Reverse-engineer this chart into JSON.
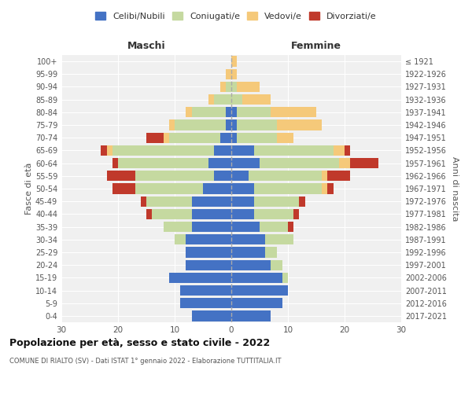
{
  "age_groups": [
    "0-4",
    "5-9",
    "10-14",
    "15-19",
    "20-24",
    "25-29",
    "30-34",
    "35-39",
    "40-44",
    "45-49",
    "50-54",
    "55-59",
    "60-64",
    "65-69",
    "70-74",
    "75-79",
    "80-84",
    "85-89",
    "90-94",
    "95-99",
    "100+"
  ],
  "birth_years": [
    "2017-2021",
    "2012-2016",
    "2007-2011",
    "2002-2006",
    "1997-2001",
    "1992-1996",
    "1987-1991",
    "1982-1986",
    "1977-1981",
    "1972-1976",
    "1967-1971",
    "1962-1966",
    "1957-1961",
    "1952-1956",
    "1947-1951",
    "1942-1946",
    "1937-1941",
    "1932-1936",
    "1927-1931",
    "1922-1926",
    "≤ 1921"
  ],
  "colors": {
    "celibi": "#4472c4",
    "coniugati": "#c5d9a0",
    "vedovi": "#f5c97a",
    "divorziati": "#c0392b"
  },
  "legend_labels": [
    "Celibi/Nubili",
    "Coniugati/e",
    "Vedovi/e",
    "Divorziati/e"
  ],
  "maschi_celibi": [
    7,
    9,
    9,
    11,
    8,
    8,
    8,
    7,
    7,
    7,
    5,
    3,
    4,
    3,
    2,
    1,
    1,
    0,
    0,
    0,
    0
  ],
  "maschi_coniugati": [
    0,
    0,
    0,
    0,
    0,
    0,
    2,
    5,
    7,
    8,
    12,
    14,
    16,
    18,
    9,
    9,
    6,
    3,
    1,
    0,
    0
  ],
  "maschi_vedovi": [
    0,
    0,
    0,
    0,
    0,
    0,
    0,
    0,
    0,
    0,
    0,
    0,
    0,
    1,
    1,
    1,
    1,
    1,
    1,
    1,
    0
  ],
  "maschi_divorziati": [
    0,
    0,
    0,
    0,
    0,
    0,
    0,
    0,
    1,
    1,
    4,
    5,
    1,
    1,
    3,
    0,
    0,
    0,
    0,
    0,
    0
  ],
  "femmine_celibi": [
    7,
    9,
    10,
    9,
    7,
    6,
    6,
    5,
    4,
    4,
    4,
    3,
    5,
    4,
    1,
    1,
    1,
    0,
    0,
    0,
    0
  ],
  "femmine_coniugati": [
    0,
    0,
    0,
    1,
    2,
    2,
    5,
    5,
    7,
    8,
    12,
    13,
    14,
    14,
    7,
    7,
    6,
    2,
    1,
    0,
    0
  ],
  "femmine_vedovi": [
    0,
    0,
    0,
    0,
    0,
    0,
    0,
    0,
    0,
    0,
    1,
    1,
    2,
    2,
    3,
    8,
    8,
    5,
    4,
    1,
    1
  ],
  "femmine_divorziati": [
    0,
    0,
    0,
    0,
    0,
    0,
    0,
    1,
    1,
    1,
    1,
    4,
    5,
    1,
    0,
    0,
    0,
    0,
    0,
    0,
    0
  ],
  "xlim": 30,
  "title_main": "Popolazione per età, sesso e stato civile - 2022",
  "title_sub": "COMUNE DI RIALTO (SV) - Dati ISTAT 1° gennaio 2022 - Elaborazione TUTTITALIA.IT",
  "xlabel_left": "Maschi",
  "xlabel_right": "Femmine",
  "ylabel_left": "Fasce di età",
  "ylabel_right": "Anni di nascita",
  "bg_color": "#ffffff",
  "plot_bg": "#f0f0f0"
}
